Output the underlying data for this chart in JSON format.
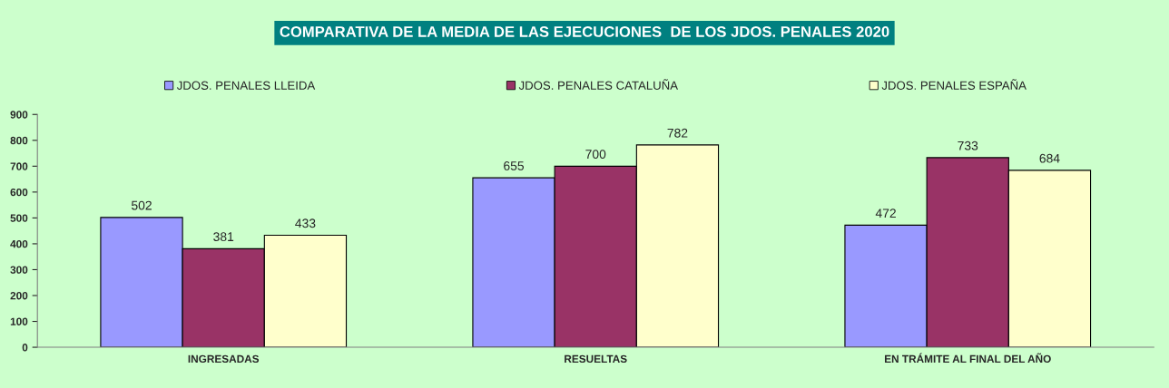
{
  "chart_data": {
    "type": "bar",
    "title": "COMPARATIVA DE LA MEDIA DE LAS EJECUCIONES  DE LOS JDOS. PENALES 2020",
    "categories": [
      "INGRESADAS",
      "RESUELTAS",
      "EN TRÁMITE AL FINAL DEL AÑO"
    ],
    "series": [
      {
        "name": "JDOS. PENALES LLEIDA",
        "color": "#9999ff",
        "values": [
          502,
          655,
          472
        ]
      },
      {
        "name": "JDOS. PENALES CATALUÑA",
        "color": "#993366",
        "values": [
          381,
          700,
          733
        ]
      },
      {
        "name": "JDOS. PENALES ESPAÑA",
        "color": "#ffffcc",
        "values": [
          433,
          782,
          684
        ]
      }
    ],
    "ylim": [
      0,
      900
    ],
    "yticks": [
      0,
      100,
      200,
      300,
      400,
      500,
      600,
      700,
      800,
      900
    ],
    "data_labels": true,
    "legend": "top",
    "grid": false
  }
}
